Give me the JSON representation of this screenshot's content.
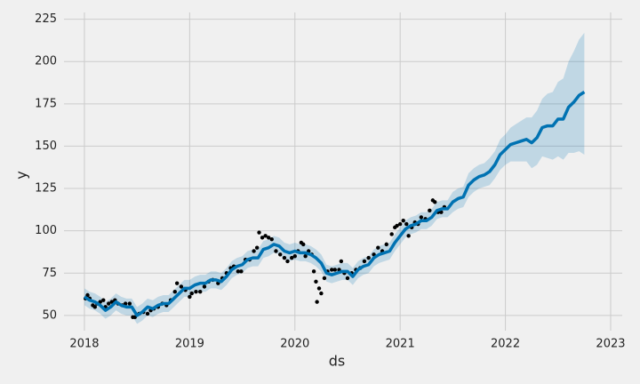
{
  "chart_data": {
    "type": "forecast",
    "xlabel": "ds",
    "ylabel": "y",
    "xlim": [
      2017.806,
      2023.11
    ],
    "ylim": [
      41,
      229
    ],
    "xticks": [
      2018,
      2019,
      2020,
      2021,
      2022,
      2023
    ],
    "yticks": [
      50,
      75,
      100,
      125,
      150,
      175,
      200,
      225
    ],
    "grid": true,
    "color": "#0072B2",
    "band_color": "#0072B2",
    "point_color": "#000000",
    "x": [
      2018.0,
      2018.05,
      2018.1,
      2018.15,
      2018.2,
      2018.25,
      2018.3,
      2018.35,
      2018.4,
      2018.45,
      2018.5,
      2018.55,
      2018.6,
      2018.65,
      2018.7,
      2018.75,
      2018.8,
      2018.85,
      2018.9,
      2018.95,
      2019.0,
      2019.05,
      2019.1,
      2019.15,
      2019.2,
      2019.25,
      2019.3,
      2019.35,
      2019.4,
      2019.45,
      2019.5,
      2019.55,
      2019.6,
      2019.65,
      2019.7,
      2019.75,
      2019.8,
      2019.85,
      2019.9,
      2019.95,
      2020.0,
      2020.05,
      2020.1,
      2020.15,
      2020.2,
      2020.25,
      2020.3,
      2020.35,
      2020.4,
      2020.45,
      2020.5,
      2020.55,
      2020.6,
      2020.65,
      2020.7,
      2020.75,
      2020.8,
      2020.85,
      2020.9,
      2020.95,
      2021.0,
      2021.05,
      2021.1,
      2021.15,
      2021.2,
      2021.25,
      2021.3,
      2021.35,
      2021.4,
      2021.45,
      2021.5,
      2021.55,
      2021.6,
      2021.65,
      2021.7,
      2021.75,
      2021.8,
      2021.85,
      2021.9,
      2021.95,
      2022.0,
      2022.05,
      2022.1,
      2022.15,
      2022.2,
      2022.25,
      2022.3,
      2022.35,
      2022.4,
      2022.45,
      2022.5,
      2022.55,
      2022.6,
      2022.65,
      2022.7,
      2022.75
    ],
    "values": [
      61,
      59,
      58,
      56,
      53,
      55,
      58,
      56,
      55,
      55,
      50,
      52,
      55,
      54,
      56,
      57,
      57,
      60,
      63,
      66,
      66,
      68,
      69,
      69,
      71,
      71,
      70,
      73,
      77,
      79,
      80,
      83,
      84,
      84,
      89,
      90,
      92,
      91,
      88,
      87,
      88,
      87,
      87,
      86,
      84,
      81,
      75,
      74,
      75,
      76,
      76,
      73,
      77,
      79,
      80,
      84,
      86,
      87,
      88,
      93,
      97,
      101,
      103,
      104,
      106,
      106,
      108,
      112,
      113,
      113,
      117,
      119,
      120,
      127,
      130,
      132,
      133,
      135,
      139,
      145,
      148,
      151,
      152,
      153,
      154,
      152,
      155,
      161,
      162,
      162,
      166,
      166,
      173,
      176,
      180,
      182
    ],
    "lower": [
      56,
      54,
      53,
      51,
      48,
      50,
      53,
      51,
      50,
      50,
      45,
      47,
      50,
      49,
      51,
      52,
      52,
      55,
      58,
      61,
      61,
      63,
      64,
      64,
      66,
      66,
      65,
      68,
      72,
      74,
      75,
      78,
      79,
      79,
      84,
      85,
      87,
      86,
      83,
      82,
      83,
      82,
      82,
      81,
      79,
      76,
      70,
      69,
      70,
      71,
      71,
      68,
      72,
      74,
      75,
      79,
      81,
      82,
      83,
      88,
      92,
      96,
      98,
      99,
      101,
      101,
      103,
      107,
      108,
      108,
      111,
      113,
      114,
      120,
      123,
      125,
      126,
      127,
      131,
      136,
      139,
      141,
      141,
      141,
      141,
      137,
      139,
      144,
      143,
      142,
      144,
      142,
      146,
      146,
      147,
      145
    ],
    "upper": [
      66,
      64,
      63,
      61,
      58,
      60,
      63,
      61,
      60,
      60,
      55,
      57,
      60,
      59,
      61,
      62,
      62,
      65,
      68,
      71,
      71,
      73,
      74,
      74,
      76,
      76,
      75,
      78,
      82,
      84,
      85,
      88,
      89,
      89,
      94,
      95,
      97,
      96,
      93,
      92,
      93,
      92,
      92,
      91,
      89,
      86,
      80,
      79,
      80,
      81,
      81,
      78,
      82,
      84,
      85,
      89,
      91,
      92,
      93,
      98,
      102,
      106,
      108,
      109,
      111,
      111,
      113,
      117,
      118,
      118,
      123,
      125,
      126,
      134,
      137,
      139,
      140,
      143,
      147,
      154,
      157,
      161,
      163,
      165,
      167,
      167,
      171,
      178,
      181,
      182,
      188,
      190,
      200,
      206,
      213,
      217
    ],
    "points": {
      "x": [
        2018.01,
        2018.03,
        2018.05,
        2018.08,
        2018.1,
        2018.12,
        2018.15,
        2018.18,
        2018.2,
        2018.23,
        2018.26,
        2018.29,
        2018.32,
        2018.36,
        2018.39,
        2018.43,
        2018.46,
        2018.48,
        2018.52,
        2018.56,
        2018.6,
        2018.63,
        2018.66,
        2018.7,
        2018.74,
        2018.78,
        2018.82,
        2018.86,
        2018.88,
        2018.92,
        2018.96,
        2019.0,
        2019.02,
        2019.06,
        2019.1,
        2019.14,
        2019.18,
        2019.22,
        2019.27,
        2019.31,
        2019.35,
        2019.39,
        2019.42,
        2019.46,
        2019.49,
        2019.53,
        2019.57,
        2019.61,
        2019.64,
        2019.66,
        2019.69,
        2019.72,
        2019.75,
        2019.78,
        2019.82,
        2019.86,
        2019.9,
        2019.93,
        2019.97,
        2020.0,
        2020.03,
        2020.06,
        2020.08,
        2020.1,
        2020.13,
        2020.16,
        2020.18,
        2020.2,
        2020.21,
        2020.23,
        2020.25,
        2020.28,
        2020.31,
        2020.35,
        2020.38,
        2020.42,
        2020.44,
        2020.47,
        2020.5,
        2020.54,
        2020.58,
        2020.62,
        2020.66,
        2020.7,
        2020.75,
        2020.79,
        2020.83,
        2020.87,
        2020.92,
        2020.95,
        2020.97,
        2021.0,
        2021.03,
        2021.06,
        2021.08,
        2021.11,
        2021.14,
        2021.17,
        2021.2,
        2021.24,
        2021.28,
        2021.31,
        2021.33,
        2021.36,
        2021.39,
        2021.42
      ],
      "y": [
        60,
        62,
        60,
        56,
        55,
        57,
        58,
        59,
        55,
        57,
        58,
        59,
        57,
        56,
        57,
        57,
        49,
        49,
        51,
        52,
        51,
        53,
        54,
        55,
        57,
        56,
        59,
        64,
        69,
        67,
        65,
        61,
        63,
        64,
        64,
        67,
        70,
        71,
        69,
        72,
        75,
        78,
        79,
        76,
        76,
        83,
        83,
        88,
        90,
        99,
        96,
        97,
        96,
        95,
        88,
        86,
        84,
        82,
        84,
        85,
        88,
        93,
        92,
        85,
        88,
        86,
        76,
        70,
        58,
        66,
        63,
        72,
        76,
        77,
        77,
        77,
        82,
        75,
        72,
        75,
        77,
        78,
        82,
        84,
        86,
        90,
        88,
        92,
        98,
        102,
        103,
        104,
        106,
        104,
        97,
        102,
        105,
        104,
        108,
        107,
        112,
        118,
        117,
        111,
        111,
        114
      ]
    }
  }
}
